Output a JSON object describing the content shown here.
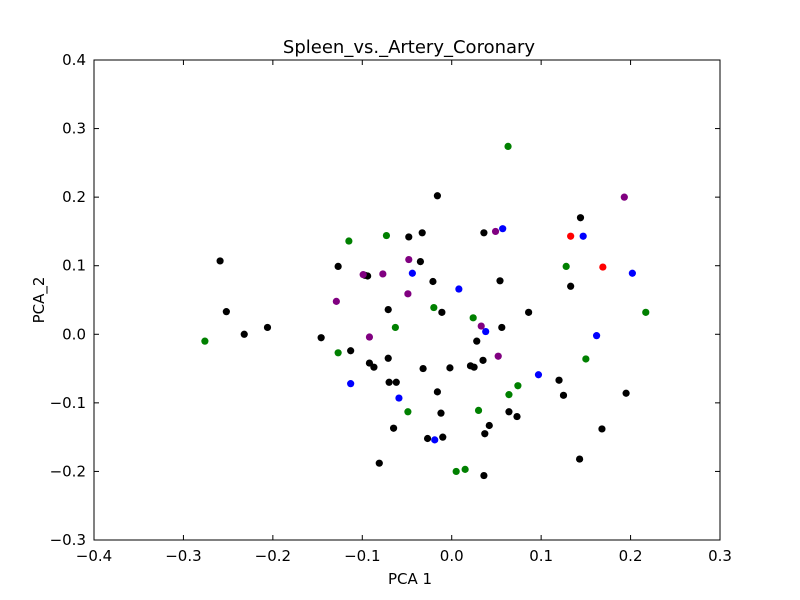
{
  "chart_data": {
    "type": "scatter",
    "title": "Spleen_vs._Artery_Coronary",
    "xlabel": "PCA 1",
    "ylabel": "PCA_2",
    "xlim": [
      -0.4,
      0.3
    ],
    "ylim": [
      -0.3,
      0.4
    ],
    "xticks": [
      "−0.4",
      "−0.3",
      "−0.2",
      "−0.1",
      "0.0",
      "0.1",
      "0.2",
      "0.3"
    ],
    "yticks": [
      "−0.3",
      "−0.2",
      "−0.1",
      "0.0",
      "0.1",
      "0.2",
      "0.3",
      "0.4"
    ],
    "grid": false,
    "series": [
      {
        "color": "#000000",
        "points": [
          [
            -0.259,
            0.107
          ],
          [
            -0.252,
            0.033
          ],
          [
            -0.232,
            0.0
          ],
          [
            -0.206,
            0.01
          ],
          [
            -0.146,
            -0.005
          ],
          [
            -0.127,
            0.099
          ],
          [
            -0.113,
            -0.024
          ],
          [
            -0.097,
            0.086
          ],
          [
            -0.094,
            0.085
          ],
          [
            -0.092,
            -0.042
          ],
          [
            -0.087,
            -0.048
          ],
          [
            -0.071,
            -0.035
          ],
          [
            -0.071,
            0.036
          ],
          [
            -0.07,
            -0.07
          ],
          [
            -0.065,
            -0.137
          ],
          [
            -0.062,
            -0.07
          ],
          [
            -0.048,
            0.142
          ],
          [
            -0.035,
            0.106
          ],
          [
            -0.033,
            0.148
          ],
          [
            -0.032,
            -0.05
          ],
          [
            -0.081,
            -0.188
          ],
          [
            -0.027,
            -0.152
          ],
          [
            -0.021,
            0.077
          ],
          [
            -0.016,
            0.202
          ],
          [
            -0.016,
            -0.084
          ],
          [
            -0.012,
            -0.115
          ],
          [
            -0.011,
            0.032
          ],
          [
            -0.01,
            -0.15
          ],
          [
            -0.002,
            -0.049
          ],
          [
            0.021,
            -0.046
          ],
          [
            0.025,
            -0.048
          ],
          [
            0.028,
            -0.01
          ],
          [
            0.036,
            0.148
          ],
          [
            0.035,
            -0.038
          ],
          [
            0.037,
            -0.145
          ],
          [
            0.036,
            -0.206
          ],
          [
            0.042,
            -0.133
          ],
          [
            0.054,
            0.078
          ],
          [
            0.056,
            0.01
          ],
          [
            0.064,
            -0.113
          ],
          [
            0.073,
            -0.12
          ],
          [
            0.086,
            0.032
          ],
          [
            0.12,
            -0.067
          ],
          [
            0.125,
            -0.089
          ],
          [
            0.133,
            0.07
          ],
          [
            0.143,
            -0.182
          ],
          [
            0.144,
            0.17
          ],
          [
            0.168,
            -0.138
          ],
          [
            0.195,
            -0.086
          ]
        ]
      },
      {
        "color": "#008000",
        "points": [
          [
            -0.276,
            -0.01
          ],
          [
            -0.127,
            -0.027
          ],
          [
            -0.115,
            0.136
          ],
          [
            -0.073,
            0.144
          ],
          [
            -0.063,
            0.01
          ],
          [
            -0.049,
            -0.113
          ],
          [
            -0.02,
            0.039
          ],
          [
            0.005,
            -0.2
          ],
          [
            0.015,
            -0.197
          ],
          [
            0.024,
            0.024
          ],
          [
            0.03,
            -0.111
          ],
          [
            0.063,
            0.274
          ],
          [
            0.064,
            -0.088
          ],
          [
            0.074,
            -0.075
          ],
          [
            0.128,
            0.099
          ],
          [
            0.15,
            -0.036
          ],
          [
            0.217,
            0.032
          ]
        ]
      },
      {
        "color": "#0000ff",
        "points": [
          [
            -0.113,
            -0.072
          ],
          [
            -0.059,
            -0.093
          ],
          [
            -0.044,
            0.089
          ],
          [
            -0.019,
            -0.154
          ],
          [
            0.008,
            0.066
          ],
          [
            0.038,
            0.004
          ],
          [
            0.057,
            0.154
          ],
          [
            0.097,
            -0.059
          ],
          [
            0.147,
            0.143
          ],
          [
            0.162,
            -0.002
          ],
          [
            0.202,
            0.089
          ]
        ]
      },
      {
        "color": "#800080",
        "points": [
          [
            -0.129,
            0.048
          ],
          [
            -0.099,
            0.087
          ],
          [
            -0.092,
            -0.004
          ],
          [
            -0.077,
            0.088
          ],
          [
            -0.049,
            0.059
          ],
          [
            -0.048,
            0.109
          ],
          [
            0.033,
            0.012
          ],
          [
            0.049,
            0.15
          ],
          [
            0.052,
            -0.032
          ],
          [
            0.193,
            0.2
          ]
        ]
      },
      {
        "color": "#ff0000",
        "points": [
          [
            0.133,
            0.143
          ],
          [
            0.169,
            0.098
          ]
        ]
      }
    ]
  }
}
